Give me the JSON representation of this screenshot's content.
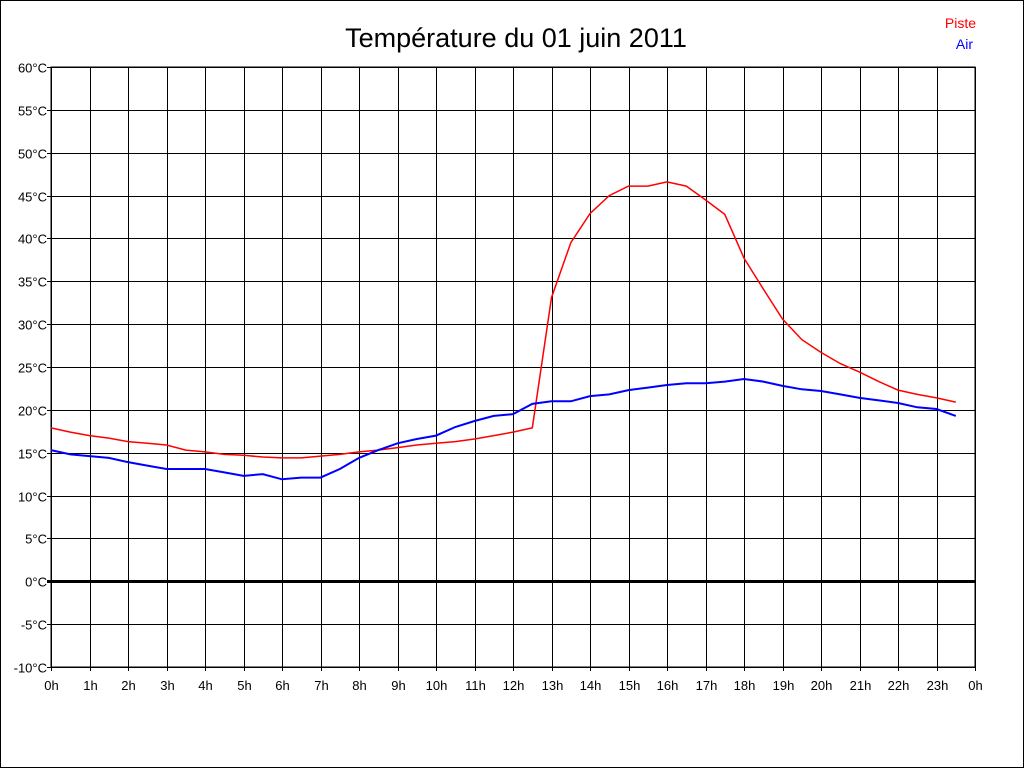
{
  "chart_data": {
    "type": "line",
    "title": "Température du 01 juin 2011",
    "xlabel": "",
    "ylabel": "",
    "x_tick_labels": [
      "0h",
      "1h",
      "2h",
      "3h",
      "4h",
      "5h",
      "6h",
      "7h",
      "8h",
      "9h",
      "10h",
      "11h",
      "12h",
      "13h",
      "14h",
      "15h",
      "16h",
      "17h",
      "18h",
      "19h",
      "20h",
      "21h",
      "22h",
      "23h",
      "0h"
    ],
    "y_tick_labels": [
      "60°C",
      "55°C",
      "50°C",
      "45°C",
      "40°C",
      "35°C",
      "30°C",
      "25°C",
      "20°C",
      "15°C",
      "10°C",
      "5°C",
      "0°C",
      "-5°C",
      "-10°C"
    ],
    "xlim": [
      0,
      24
    ],
    "ylim": [
      -10,
      60
    ],
    "grid": true,
    "legend_position": "top-right",
    "x": [
      0,
      0.5,
      1,
      1.5,
      2,
      2.5,
      3,
      3.5,
      4,
      4.5,
      5,
      5.5,
      6,
      6.5,
      7,
      7.5,
      8,
      8.5,
      9,
      9.5,
      10,
      10.5,
      11,
      11.5,
      12,
      12.5,
      13,
      13.5,
      14,
      14.5,
      15,
      15.5,
      16,
      16.5,
      17,
      17.5,
      18,
      18.5,
      19,
      19.5,
      20,
      20.5,
      21,
      21.5,
      22,
      22.5,
      23,
      23.5
    ],
    "series": [
      {
        "name": "Piste",
        "color": "#ff0000",
        "values": [
          17.9,
          17.4,
          17.0,
          16.7,
          16.3,
          16.1,
          15.9,
          15.3,
          15.1,
          14.8,
          14.7,
          14.5,
          14.4,
          14.4,
          14.6,
          14.8,
          15.1,
          15.3,
          15.6,
          15.9,
          16.1,
          16.3,
          16.6,
          17.0,
          17.4,
          17.9,
          33.1,
          39.5,
          42.9,
          45.0,
          46.1,
          46.1,
          46.6,
          46.1,
          44.5,
          42.8,
          37.7,
          34.1,
          30.6,
          28.2,
          26.7,
          25.4,
          24.4,
          23.3,
          22.3,
          21.8,
          21.4,
          20.9
        ]
      },
      {
        "name": "Air",
        "color": "#0000ff",
        "values": [
          15.3,
          14.8,
          14.6,
          14.4,
          13.9,
          13.5,
          13.1,
          13.1,
          13.1,
          12.7,
          12.3,
          12.5,
          11.9,
          12.1,
          12.1,
          13.1,
          14.4,
          15.3,
          16.1,
          16.6,
          17.0,
          18.0,
          18.7,
          19.3,
          19.5,
          20.7,
          21.0,
          21.0,
          21.6,
          21.8,
          22.3,
          22.6,
          22.9,
          23.1,
          23.1,
          23.3,
          23.6,
          23.3,
          22.8,
          22.4,
          22.2,
          21.8,
          21.4,
          21.1,
          20.8,
          20.3,
          20.1,
          19.3
        ]
      }
    ]
  }
}
